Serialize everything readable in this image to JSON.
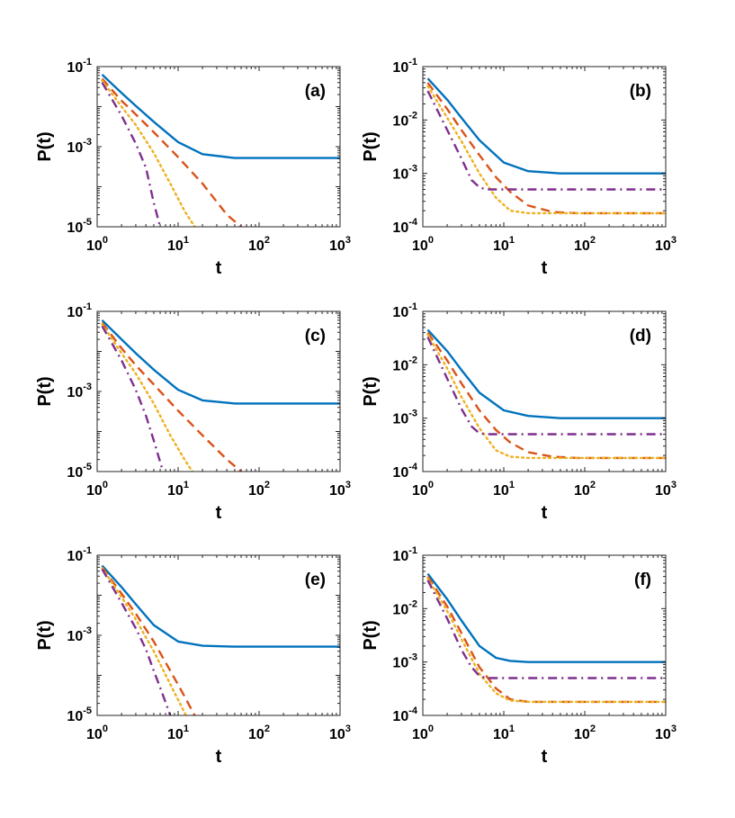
{
  "chart_data": [
    {
      "type": "line",
      "panel_label": "(a)",
      "xlabel": "t",
      "ylabel": "P(t)",
      "xscale": "log",
      "yscale": "log",
      "xlim": [
        1,
        1000
      ],
      "ylim": [
        1e-05,
        0.1
      ],
      "series": [
        {
          "color": "#0072BD",
          "dash": "solid",
          "x": [
            1.15,
            2,
            3,
            5,
            10,
            20,
            50,
            100,
            1000
          ],
          "y": [
            0.063,
            0.022,
            0.0105,
            0.0042,
            0.0013,
            0.00065,
            0.00052,
            0.00052,
            0.00052
          ]
        },
        {
          "color": "#D95319",
          "dash": "dashed",
          "x": [
            1.15,
            2,
            3,
            5,
            10,
            20,
            40,
            60
          ],
          "y": [
            0.05,
            0.014,
            0.0064,
            0.0023,
            0.00055,
            0.00012,
            2e-05,
            1e-05
          ]
        },
        {
          "color": "#EDB120",
          "dash": "dotted",
          "x": [
            1.15,
            2,
            3,
            5,
            8,
            12,
            16
          ],
          "y": [
            0.045,
            0.01,
            0.0035,
            0.0007,
            0.00012,
            2.5e-05,
            1e-05
          ]
        },
        {
          "color": "#7E2F8E",
          "dash": "dashdot",
          "x": [
            1.15,
            2,
            3,
            4,
            5,
            6
          ],
          "y": [
            0.04,
            0.006,
            0.0012,
            0.0003,
            4e-05,
            1e-05
          ]
        }
      ],
      "xticks": [
        {
          "base": "10",
          "exp": "0"
        },
        {
          "base": "10",
          "exp": "1"
        },
        {
          "base": "10",
          "exp": "2"
        },
        {
          "base": "10",
          "exp": "3"
        }
      ],
      "yticks": [
        {
          "base": "10",
          "exp": "-5"
        },
        {
          "base": "10",
          "exp": "-3"
        },
        {
          "base": "10",
          "exp": "-1"
        }
      ]
    },
    {
      "type": "line",
      "panel_label": "(b)",
      "xlabel": "t",
      "ylabel": "P(t)",
      "xscale": "log",
      "yscale": "log",
      "xlim": [
        1,
        1000
      ],
      "ylim": [
        0.0001,
        0.1
      ],
      "series": [
        {
          "color": "#0072BD",
          "dash": "solid",
          "x": [
            1.15,
            2,
            3,
            5,
            10,
            20,
            50,
            100,
            1000
          ],
          "y": [
            0.06,
            0.024,
            0.011,
            0.0042,
            0.0016,
            0.0011,
            0.001,
            0.001,
            0.001
          ]
        },
        {
          "color": "#D95319",
          "dash": "dashed",
          "x": [
            1.15,
            2,
            3,
            5,
            8,
            12,
            20,
            40,
            80,
            1000
          ],
          "y": [
            0.05,
            0.016,
            0.0065,
            0.0022,
            0.00085,
            0.00045,
            0.00025,
            0.00019,
            0.00018,
            0.00018
          ]
        },
        {
          "color": "#EDB120",
          "dash": "dotted",
          "x": [
            1.15,
            2,
            3,
            5,
            8,
            12,
            20,
            50,
            1000
          ],
          "y": [
            0.043,
            0.011,
            0.004,
            0.001,
            0.00035,
            0.0002,
            0.00018,
            0.00018,
            0.00018
          ]
        },
        {
          "color": "#7E2F8E",
          "dash": "dashdot",
          "x": [
            1.15,
            2,
            3,
            4,
            5,
            6,
            8,
            1000
          ],
          "y": [
            0.035,
            0.0065,
            0.0019,
            0.00075,
            0.00055,
            0.0005,
            0.0005,
            0.0005
          ]
        }
      ],
      "xticks": [
        {
          "base": "10",
          "exp": "0"
        },
        {
          "base": "10",
          "exp": "1"
        },
        {
          "base": "10",
          "exp": "2"
        },
        {
          "base": "10",
          "exp": "3"
        }
      ],
      "yticks": [
        {
          "base": "10",
          "exp": "-4"
        },
        {
          "base": "10",
          "exp": "-3"
        },
        {
          "base": "10",
          "exp": "-2"
        },
        {
          "base": "10",
          "exp": "-1"
        }
      ]
    },
    {
      "type": "line",
      "panel_label": "(c)",
      "xlabel": "t",
      "ylabel": "P(t)",
      "xscale": "log",
      "yscale": "log",
      "xlim": [
        1,
        1000
      ],
      "ylim": [
        1e-05,
        0.1
      ],
      "series": [
        {
          "color": "#0072BD",
          "dash": "solid",
          "x": [
            1.15,
            2,
            3,
            5,
            10,
            20,
            50,
            100,
            1000
          ],
          "y": [
            0.06,
            0.02,
            0.009,
            0.0035,
            0.0011,
            0.0006,
            0.0005,
            0.0005,
            0.0005
          ]
        },
        {
          "color": "#D95319",
          "dash": "dashed",
          "x": [
            1.15,
            2,
            3,
            5,
            10,
            20,
            40,
            60
          ],
          "y": [
            0.052,
            0.012,
            0.0045,
            0.0015,
            0.00033,
            8e-05,
            2e-05,
            1e-05
          ]
        },
        {
          "color": "#EDB120",
          "dash": "dotted",
          "x": [
            1.15,
            2,
            3,
            5,
            8,
            12,
            15
          ],
          "y": [
            0.048,
            0.009,
            0.0028,
            0.0005,
            8e-05,
            2e-05,
            1e-05
          ]
        },
        {
          "color": "#7E2F8E",
          "dash": "dashdot",
          "x": [
            1.15,
            2,
            3,
            4,
            5,
            6.5
          ],
          "y": [
            0.043,
            0.006,
            0.0011,
            0.00025,
            6e-05,
            1e-05
          ]
        }
      ],
      "xticks": [
        {
          "base": "10",
          "exp": "0"
        },
        {
          "base": "10",
          "exp": "1"
        },
        {
          "base": "10",
          "exp": "2"
        },
        {
          "base": "10",
          "exp": "3"
        }
      ],
      "yticks": [
        {
          "base": "10",
          "exp": "-5"
        },
        {
          "base": "10",
          "exp": "-3"
        },
        {
          "base": "10",
          "exp": "-1"
        }
      ]
    },
    {
      "type": "line",
      "panel_label": "(d)",
      "xlabel": "t",
      "ylabel": "P(t)",
      "xscale": "log",
      "yscale": "log",
      "xlim": [
        1,
        1000
      ],
      "ylim": [
        0.0001,
        0.1
      ],
      "series": [
        {
          "color": "#0072BD",
          "dash": "solid",
          "x": [
            1.15,
            2,
            3,
            5,
            10,
            20,
            50,
            100,
            1000
          ],
          "y": [
            0.045,
            0.018,
            0.008,
            0.003,
            0.0014,
            0.0011,
            0.001,
            0.001,
            0.001
          ]
        },
        {
          "color": "#D95319",
          "dash": "dashed",
          "x": [
            1.15,
            2,
            3,
            5,
            8,
            12,
            20,
            40,
            80,
            1000
          ],
          "y": [
            0.04,
            0.012,
            0.0045,
            0.0014,
            0.0006,
            0.00035,
            0.00023,
            0.00019,
            0.00018,
            0.00018
          ]
        },
        {
          "color": "#EDB120",
          "dash": "dotted",
          "x": [
            1.15,
            2,
            3,
            5,
            8,
            12,
            20,
            50,
            1000
          ],
          "y": [
            0.037,
            0.0085,
            0.0025,
            0.00065,
            0.00025,
            0.00019,
            0.00018,
            0.00018,
            0.00018
          ]
        },
        {
          "color": "#7E2F8E",
          "dash": "dashdot",
          "x": [
            1.15,
            2,
            3,
            4,
            5,
            6,
            8,
            1000
          ],
          "y": [
            0.033,
            0.0055,
            0.0015,
            0.0007,
            0.00052,
            0.0005,
            0.0005,
            0.0005
          ]
        }
      ],
      "xticks": [
        {
          "base": "10",
          "exp": "0"
        },
        {
          "base": "10",
          "exp": "1"
        },
        {
          "base": "10",
          "exp": "2"
        },
        {
          "base": "10",
          "exp": "3"
        }
      ],
      "yticks": [
        {
          "base": "10",
          "exp": "-4"
        },
        {
          "base": "10",
          "exp": "-3"
        },
        {
          "base": "10",
          "exp": "-2"
        },
        {
          "base": "10",
          "exp": "-1"
        }
      ]
    },
    {
      "type": "line",
      "panel_label": "(e)",
      "xlabel": "t",
      "ylabel": "P(t)",
      "xscale": "log",
      "yscale": "log",
      "xlim": [
        1,
        1000
      ],
      "ylim": [
        1e-05,
        0.1
      ],
      "series": [
        {
          "color": "#0072BD",
          "dash": "solid",
          "x": [
            1.15,
            2,
            3,
            5,
            10,
            20,
            50,
            100,
            1000
          ],
          "y": [
            0.055,
            0.016,
            0.006,
            0.0018,
            0.0007,
            0.00055,
            0.00052,
            0.00052,
            0.00052
          ]
        },
        {
          "color": "#D95319",
          "dash": "dashed",
          "x": [
            1.15,
            2,
            3,
            5,
            8,
            12,
            16
          ],
          "y": [
            0.05,
            0.011,
            0.0035,
            0.0007,
            0.00013,
            3e-05,
            1e-05
          ]
        },
        {
          "color": "#EDB120",
          "dash": "dotted",
          "x": [
            1.15,
            2,
            3,
            5,
            8,
            12.5
          ],
          "y": [
            0.048,
            0.009,
            0.0025,
            0.0004,
            6e-05,
            1e-05
          ]
        },
        {
          "color": "#7E2F8E",
          "dash": "dashdot",
          "x": [
            1.15,
            2,
            3,
            4,
            5,
            6,
            8
          ],
          "y": [
            0.045,
            0.0065,
            0.0015,
            0.00045,
            0.00013,
            5e-05,
            1e-05
          ]
        }
      ],
      "xticks": [
        {
          "base": "10",
          "exp": "0"
        },
        {
          "base": "10",
          "exp": "1"
        },
        {
          "base": "10",
          "exp": "2"
        },
        {
          "base": "10",
          "exp": "3"
        }
      ],
      "yticks": [
        {
          "base": "10",
          "exp": "-5"
        },
        {
          "base": "10",
          "exp": "-3"
        },
        {
          "base": "10",
          "exp": "-1"
        }
      ]
    },
    {
      "type": "line",
      "panel_label": "(f)",
      "xlabel": "t",
      "ylabel": "P(t)",
      "xscale": "log",
      "yscale": "log",
      "xlim": [
        1,
        1000
      ],
      "ylim": [
        0.0001,
        0.1
      ],
      "series": [
        {
          "color": "#0072BD",
          "dash": "solid",
          "x": [
            1.15,
            2,
            3,
            5,
            8,
            12,
            20,
            50,
            1000
          ],
          "y": [
            0.045,
            0.015,
            0.006,
            0.002,
            0.0012,
            0.00105,
            0.001,
            0.001,
            0.001
          ]
        },
        {
          "color": "#D95319",
          "dash": "dashed",
          "x": [
            1.15,
            2,
            3,
            5,
            8,
            12,
            20,
            40,
            1000
          ],
          "y": [
            0.04,
            0.011,
            0.0035,
            0.0008,
            0.00032,
            0.0002,
            0.00018,
            0.00018,
            0.00018
          ]
        },
        {
          "color": "#EDB120",
          "dash": "dotted",
          "x": [
            1.15,
            2,
            3,
            5,
            8,
            12,
            20,
            1000
          ],
          "y": [
            0.037,
            0.009,
            0.0027,
            0.0006,
            0.00026,
            0.00019,
            0.00018,
            0.00018
          ]
        },
        {
          "color": "#7E2F8E",
          "dash": "dashdot",
          "x": [
            1.15,
            2,
            3,
            4,
            5,
            6,
            8,
            1000
          ],
          "y": [
            0.034,
            0.0065,
            0.0017,
            0.0008,
            0.00055,
            0.0005,
            0.0005,
            0.0005
          ]
        }
      ],
      "xticks": [
        {
          "base": "10",
          "exp": "0"
        },
        {
          "base": "10",
          "exp": "1"
        },
        {
          "base": "10",
          "exp": "2"
        },
        {
          "base": "10",
          "exp": "3"
        }
      ],
      "yticks": [
        {
          "base": "10",
          "exp": "-4"
        },
        {
          "base": "10",
          "exp": "-3"
        },
        {
          "base": "10",
          "exp": "-2"
        },
        {
          "base": "10",
          "exp": "-1"
        }
      ]
    }
  ]
}
